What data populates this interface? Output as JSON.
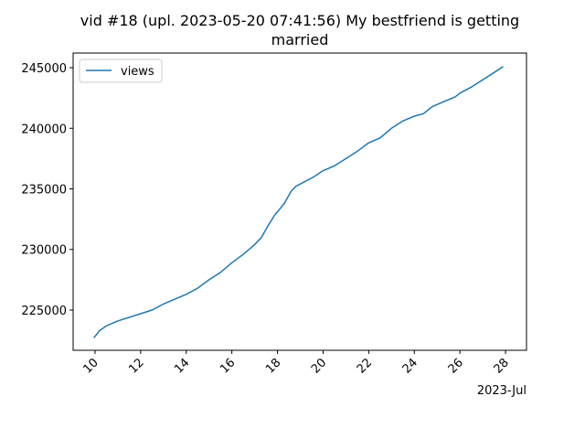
{
  "chart_data": {
    "type": "line",
    "title": "vid #18 (upl. 2023-05-20 07:41:56) My bestfriend is getting married",
    "x_offset_label": "2023-Jul",
    "x": [
      9.95,
      10.2,
      10.5,
      11.0,
      12.0,
      12.5,
      13.0,
      13.5,
      14.0,
      14.5,
      15.0,
      15.5,
      16.0,
      16.5,
      17.0,
      17.3,
      17.6,
      17.9,
      18.0,
      18.3,
      18.6,
      18.8,
      19.2,
      19.6,
      20.0,
      20.5,
      21.0,
      21.5,
      22.0,
      22.5,
      23.0,
      23.5,
      24.0,
      24.4,
      24.8,
      25.3,
      25.8,
      26.0,
      26.5,
      27.0,
      27.5,
      27.9
    ],
    "series": [
      {
        "name": "views",
        "color": "#1f77b4",
        "values": [
          222700,
          223300,
          223700,
          224100,
          224700,
          225000,
          225500,
          225900,
          226300,
          226800,
          227500,
          228100,
          228900,
          229600,
          230400,
          231000,
          232000,
          232900,
          233100,
          233800,
          234800,
          235200,
          235600,
          236000,
          236500,
          236900,
          237500,
          238100,
          238800,
          239200,
          240000,
          240600,
          241000,
          241200,
          241800,
          242200,
          242600,
          242900,
          243400,
          244000,
          244600,
          245100
        ]
      }
    ],
    "xlim": [
      9.04,
      28.92
    ],
    "xticks": [
      10,
      12,
      14,
      16,
      18,
      20,
      22,
      24,
      26,
      28
    ],
    "ylim": [
      221679,
      246208
    ],
    "yticks": [
      225000,
      230000,
      235000,
      240000,
      245000
    ],
    "grid": false,
    "legend": "upper left"
  }
}
